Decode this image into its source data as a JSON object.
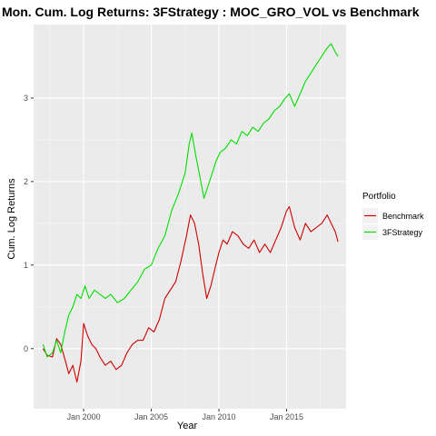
{
  "chart_data": {
    "type": "line",
    "title": "Mon. Cum. Log Returns: 3FStrategy : MOC_GRO_VOL vs Benchmark",
    "xlabel": "Year",
    "ylabel": "Cum. Log Returns",
    "x_ticks": [
      "Jan 2000",
      "Jan 2005",
      "Jan 2010",
      "Jan 2015"
    ],
    "x_tick_years": [
      2000,
      2005,
      2010,
      2015
    ],
    "xlim": [
      1996.3,
      2019.4
    ],
    "y_ticks": [
      "0",
      "1",
      "2",
      "3"
    ],
    "y_tick_values": [
      0,
      1,
      2,
      3
    ],
    "ylim": [
      -0.72,
      3.88
    ],
    "grid": true,
    "background": "#ebebeb",
    "legend": {
      "title": "Portfolio",
      "position": "right",
      "entries": [
        "Benchmark",
        "3FStrategy"
      ]
    },
    "series": [
      {
        "name": "Benchmark",
        "color": "#cc0000",
        "points": [
          [
            1997.0,
            0.0
          ],
          [
            1997.3,
            -0.08
          ],
          [
            1997.7,
            -0.1
          ],
          [
            1998.0,
            0.12
          ],
          [
            1998.3,
            0.05
          ],
          [
            1998.6,
            -0.12
          ],
          [
            1998.9,
            -0.3
          ],
          [
            1999.2,
            -0.2
          ],
          [
            1999.5,
            -0.4
          ],
          [
            1999.8,
            -0.15
          ],
          [
            2000.0,
            0.3
          ],
          [
            2000.3,
            0.15
          ],
          [
            2000.6,
            0.05
          ],
          [
            2000.9,
            0.0
          ],
          [
            2001.2,
            -0.1
          ],
          [
            2001.6,
            -0.2
          ],
          [
            2002.0,
            -0.15
          ],
          [
            2002.4,
            -0.25
          ],
          [
            2002.8,
            -0.2
          ],
          [
            2003.2,
            -0.05
          ],
          [
            2003.6,
            0.05
          ],
          [
            2004.0,
            0.1
          ],
          [
            2004.4,
            0.1
          ],
          [
            2004.8,
            0.25
          ],
          [
            2005.2,
            0.2
          ],
          [
            2005.6,
            0.35
          ],
          [
            2006.0,
            0.6
          ],
          [
            2006.4,
            0.7
          ],
          [
            2006.8,
            0.8
          ],
          [
            2007.2,
            1.05
          ],
          [
            2007.6,
            1.35
          ],
          [
            2007.9,
            1.6
          ],
          [
            2008.2,
            1.5
          ],
          [
            2008.5,
            1.25
          ],
          [
            2008.8,
            0.9
          ],
          [
            2009.1,
            0.6
          ],
          [
            2009.4,
            0.75
          ],
          [
            2009.7,
            0.95
          ],
          [
            2010.0,
            1.15
          ],
          [
            2010.3,
            1.3
          ],
          [
            2010.6,
            1.25
          ],
          [
            2011.0,
            1.4
          ],
          [
            2011.4,
            1.35
          ],
          [
            2011.8,
            1.25
          ],
          [
            2012.2,
            1.2
          ],
          [
            2012.6,
            1.3
          ],
          [
            2013.0,
            1.15
          ],
          [
            2013.4,
            1.25
          ],
          [
            2013.8,
            1.15
          ],
          [
            2014.2,
            1.3
          ],
          [
            2014.6,
            1.45
          ],
          [
            2015.0,
            1.65
          ],
          [
            2015.2,
            1.7
          ],
          [
            2015.6,
            1.45
          ],
          [
            2016.0,
            1.3
          ],
          [
            2016.4,
            1.5
          ],
          [
            2016.8,
            1.4
          ],
          [
            2017.2,
            1.45
          ],
          [
            2017.6,
            1.5
          ],
          [
            2018.0,
            1.6
          ],
          [
            2018.3,
            1.5
          ],
          [
            2018.6,
            1.4
          ],
          [
            2018.8,
            1.28
          ]
        ]
      },
      {
        "name": "3FStrategy",
        "color": "#00dd00",
        "points": [
          [
            1997.0,
            0.05
          ],
          [
            1997.3,
            -0.1
          ],
          [
            1997.7,
            -0.05
          ],
          [
            1998.0,
            0.1
          ],
          [
            1998.3,
            -0.05
          ],
          [
            1998.6,
            0.2
          ],
          [
            1998.9,
            0.4
          ],
          [
            1999.2,
            0.5
          ],
          [
            1999.5,
            0.65
          ],
          [
            1999.8,
            0.6
          ],
          [
            2000.1,
            0.75
          ],
          [
            2000.4,
            0.6
          ],
          [
            2000.8,
            0.7
          ],
          [
            2001.2,
            0.65
          ],
          [
            2001.6,
            0.6
          ],
          [
            2002.0,
            0.65
          ],
          [
            2002.5,
            0.55
          ],
          [
            2003.0,
            0.6
          ],
          [
            2003.5,
            0.7
          ],
          [
            2004.0,
            0.8
          ],
          [
            2004.5,
            0.95
          ],
          [
            2005.0,
            1.0
          ],
          [
            2005.5,
            1.2
          ],
          [
            2006.0,
            1.35
          ],
          [
            2006.5,
            1.65
          ],
          [
            2007.0,
            1.85
          ],
          [
            2007.5,
            2.1
          ],
          [
            2007.8,
            2.45
          ],
          [
            2008.0,
            2.58
          ],
          [
            2008.3,
            2.3
          ],
          [
            2008.6,
            2.05
          ],
          [
            2008.9,
            1.8
          ],
          [
            2009.2,
            1.95
          ],
          [
            2009.5,
            2.1
          ],
          [
            2009.8,
            2.25
          ],
          [
            2010.1,
            2.35
          ],
          [
            2010.5,
            2.4
          ],
          [
            2010.9,
            2.5
          ],
          [
            2011.3,
            2.45
          ],
          [
            2011.7,
            2.6
          ],
          [
            2012.1,
            2.55
          ],
          [
            2012.5,
            2.65
          ],
          [
            2012.9,
            2.6
          ],
          [
            2013.3,
            2.7
          ],
          [
            2013.7,
            2.75
          ],
          [
            2014.1,
            2.85
          ],
          [
            2014.5,
            2.9
          ],
          [
            2014.9,
            3.0
          ],
          [
            2015.2,
            3.05
          ],
          [
            2015.6,
            2.9
          ],
          [
            2016.0,
            3.05
          ],
          [
            2016.4,
            3.2
          ],
          [
            2016.8,
            3.3
          ],
          [
            2017.2,
            3.4
          ],
          [
            2017.6,
            3.5
          ],
          [
            2018.0,
            3.6
          ],
          [
            2018.3,
            3.65
          ],
          [
            2018.6,
            3.55
          ],
          [
            2018.8,
            3.5
          ]
        ]
      }
    ]
  }
}
